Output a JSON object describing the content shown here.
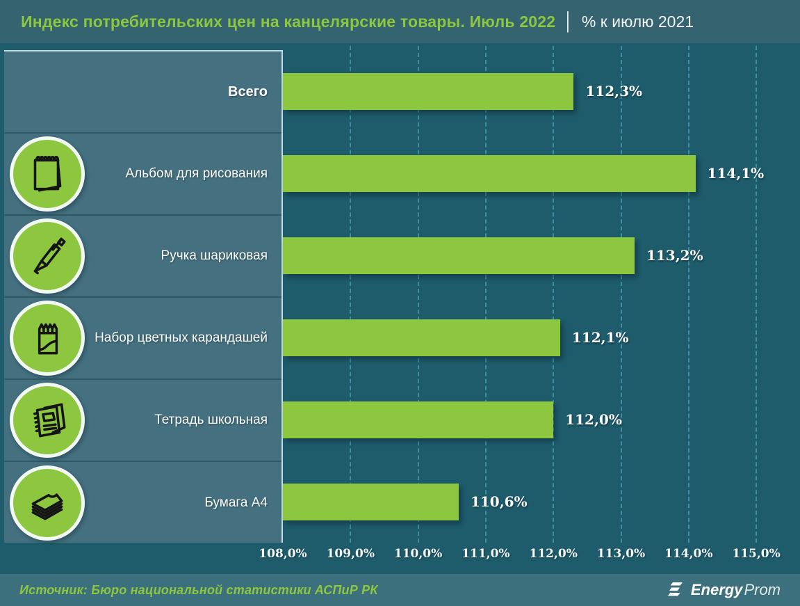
{
  "header": {
    "title_green": "Индекс потребительских цен на канцелярские товары. Июль 2022",
    "separator": "│",
    "title_white": "% к июлю 2021"
  },
  "chart_data": {
    "type": "bar",
    "orientation": "horizontal",
    "title": "Индекс потребительских цен на канцелярские товары. Июль 2022 │ % к июлю 2021",
    "categories": [
      "Всего",
      "Альбом для рисования",
      "Ручка шариковая",
      "Набор цветных карандашей",
      "Тетрадь школьная",
      "Бумага А4"
    ],
    "values": [
      112.3,
      114.1,
      113.2,
      112.1,
      112.0,
      110.6
    ],
    "value_labels": [
      "112,3%",
      "114,1%",
      "113,2%",
      "112,1%",
      "112,0%",
      "110,6%"
    ],
    "icons": [
      "",
      "sketchpad-icon",
      "pen-icon",
      "colored-pencils-icon",
      "notebook-icon",
      "paper-stack-icon"
    ],
    "x_axis": {
      "min": 108.0,
      "max": 115.0,
      "step": 1.0,
      "tick_labels": [
        "108,0%",
        "109,0%",
        "110,0%",
        "111,0%",
        "112,0%",
        "113,0%",
        "114,0%",
        "115,0%"
      ]
    },
    "grid": "dashed-vertical",
    "legend": "none",
    "bar_color": "#8dc63f",
    "plot_bg_color": "#1e5c6c",
    "panel_bg_color": "#44707f",
    "grid_color": "#4398ad"
  },
  "footer": {
    "source": "Источник: Бюро национальной статистики АСПиР РК",
    "logo_bold": "Energy",
    "logo_light": "Prom"
  }
}
